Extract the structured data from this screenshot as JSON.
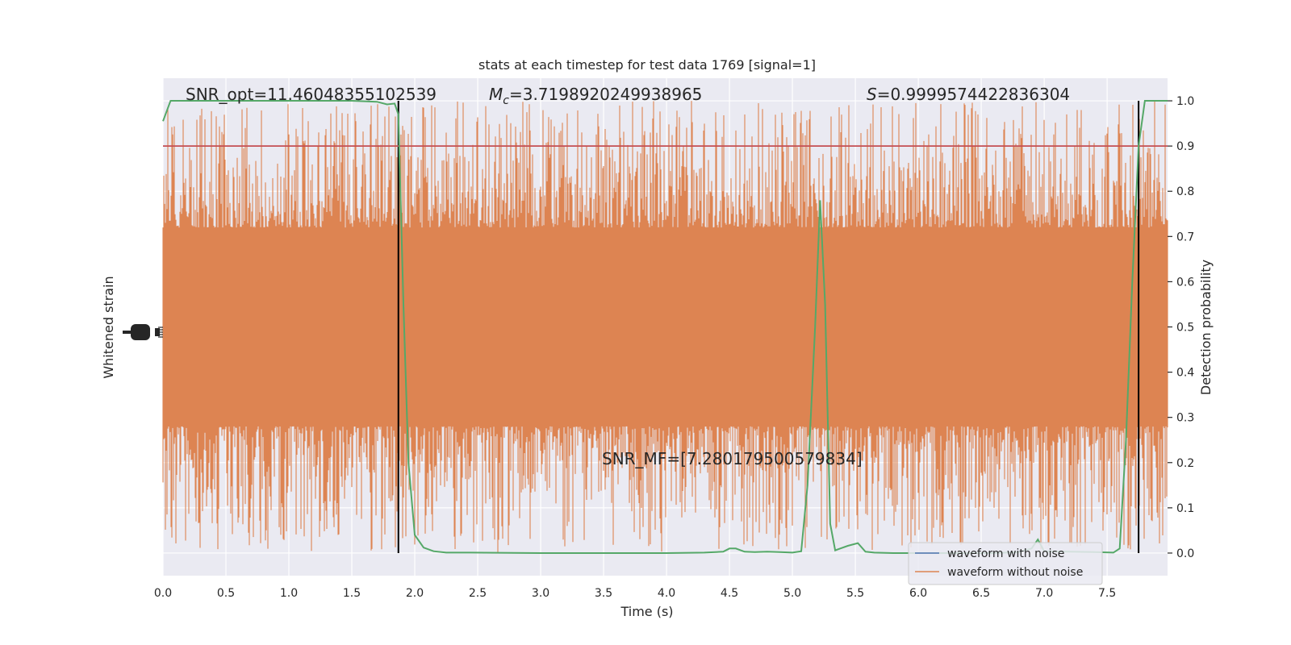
{
  "chart_data": {
    "type": "line",
    "title": "stats at each timestep for test data 1769 [signal=1]",
    "xlabel": "Time (s)",
    "ylabel_left": "Whitened strain",
    "ylabel_right": "Detection probability",
    "xlim": [
      0.0,
      7.98
    ],
    "ylim_right": [
      -0.05,
      1.05
    ],
    "grid": true,
    "legend_placement": "lower-right",
    "x_ticks": [
      "0.0",
      "0.5",
      "1.0",
      "1.5",
      "2.0",
      "2.5",
      "3.0",
      "3.5",
      "4.0",
      "4.5",
      "5.0",
      "5.5",
      "6.0",
      "6.5",
      "7.0",
      "7.5"
    ],
    "y_ticks_right": [
      "0.0",
      "0.1",
      "0.2",
      "0.3",
      "0.4",
      "0.5",
      "0.6",
      "0.7",
      "0.8",
      "0.9",
      "1.0"
    ],
    "annotations": {
      "snr_opt": "SNR_opt=11.46048355102539",
      "mc_symbol": "M",
      "mc_sub": "c",
      "mc_value": "=3.7198920249938965",
      "s_symbol": "S",
      "s_value": "=0.9999574422836304",
      "snr_mf": "SNR_MF=[7.280179500579834]"
    },
    "threshold": 0.9,
    "vertical_lines_x": [
      1.87,
      7.75
    ],
    "series": [
      {
        "name": "waveform with noise",
        "color": "#4c72b0"
      },
      {
        "name": "waveform without noise",
        "color": "#dd8452",
        "band_center": 0.5,
        "band_core_half_width": 0.18,
        "spike_max": 1.0,
        "spike_min": 0.0
      },
      {
        "color": "#55a868",
        "x": [
          0.0,
          0.06,
          0.12,
          0.5,
          1.0,
          1.5,
          1.7,
          1.78,
          1.84,
          1.87,
          1.91,
          1.95,
          2.0,
          2.07,
          2.15,
          2.25,
          2.45,
          3.0,
          3.5,
          4.0,
          4.3,
          4.45,
          4.5,
          4.55,
          4.62,
          4.7,
          4.8,
          4.9,
          5.0,
          5.07,
          5.12,
          5.18,
          5.22,
          5.26,
          5.3,
          5.34,
          5.38,
          5.44,
          5.52,
          5.58,
          5.65,
          5.8,
          6.2,
          6.6,
          6.8,
          6.9,
          6.95,
          7.0,
          7.2,
          7.4,
          7.55,
          7.6,
          7.65,
          7.7,
          7.75,
          7.8,
          7.83,
          7.9,
          7.98
        ],
        "y": [
          0.955,
          1.0,
          1.0,
          1.0,
          1.0,
          1.0,
          0.998,
          0.992,
          0.994,
          0.97,
          0.55,
          0.2,
          0.04,
          0.012,
          0.004,
          0.001,
          0.001,
          0.0,
          0.0,
          0.0,
          0.001,
          0.003,
          0.01,
          0.01,
          0.003,
          0.002,
          0.003,
          0.002,
          0.001,
          0.004,
          0.15,
          0.5,
          0.78,
          0.55,
          0.065,
          0.006,
          0.01,
          0.016,
          0.022,
          0.003,
          0.001,
          0.0,
          0.0,
          0.0,
          0.002,
          0.01,
          0.03,
          0.004,
          0.003,
          0.002,
          0.001,
          0.01,
          0.25,
          0.6,
          0.9,
          1.0,
          1.0,
          1.0,
          1.0
        ]
      }
    ]
  }
}
